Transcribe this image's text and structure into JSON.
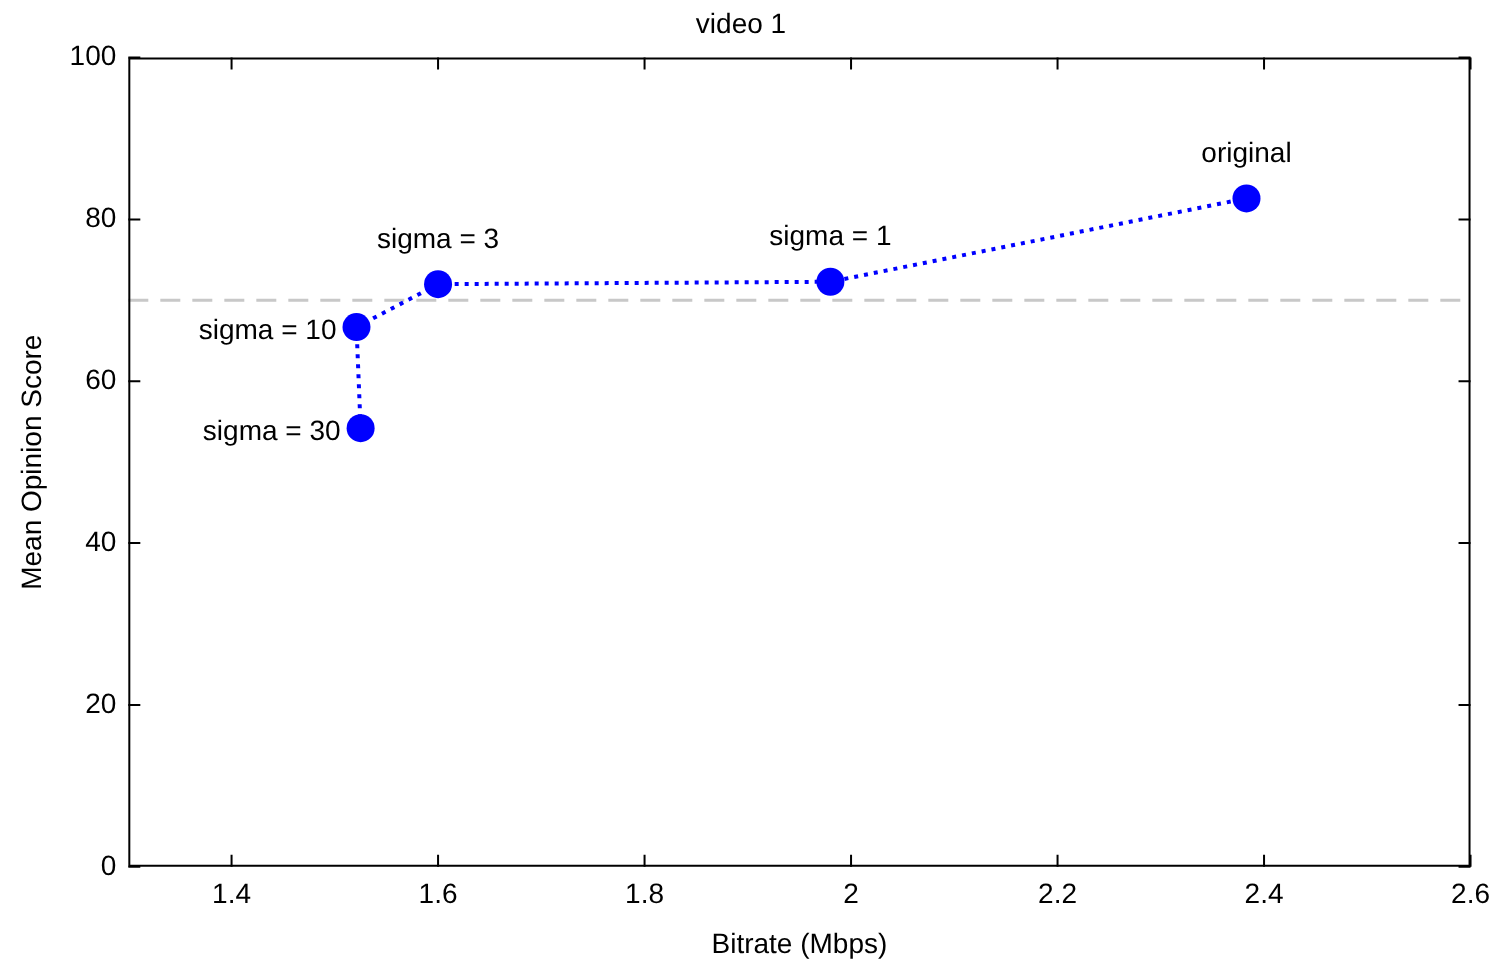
{
  "chart_data": {
    "type": "line",
    "title": "video 1",
    "xlabel": "Bitrate (Mbps)",
    "ylabel": "Mean Opinion Score",
    "x": [
      1.525,
      1.521,
      1.6,
      1.98,
      2.383
    ],
    "values": [
      54.2,
      66.7,
      72.0,
      72.3,
      82.6
    ],
    "color": "#0000ff",
    "marker": "circle",
    "line_style": "dotted",
    "grid": false,
    "legend": false,
    "xlim": [
      1.3,
      2.6
    ],
    "xticks": [
      1.4,
      1.6,
      1.8,
      2,
      2.2,
      2.4,
      2.6
    ],
    "ylim": [
      0,
      100
    ],
    "yticks": [
      0,
      20,
      40,
      60,
      80,
      100
    ],
    "ref_lines": [
      {
        "axis": "y",
        "value": 70,
        "color": "#c8c8c8",
        "line_style": "dashed"
      }
    ],
    "annotations": [
      {
        "text": "sigma = 30",
        "x": 1.525,
        "y": 54.2
      },
      {
        "text": "sigma = 10",
        "x": 1.521,
        "y": 66.7
      },
      {
        "text": "sigma = 3",
        "x": 1.6,
        "y": 72.0
      },
      {
        "text": "sigma = 1",
        "x": 1.98,
        "y": 72.3
      },
      {
        "text": "original",
        "x": 2.383,
        "y": 82.6
      }
    ]
  }
}
